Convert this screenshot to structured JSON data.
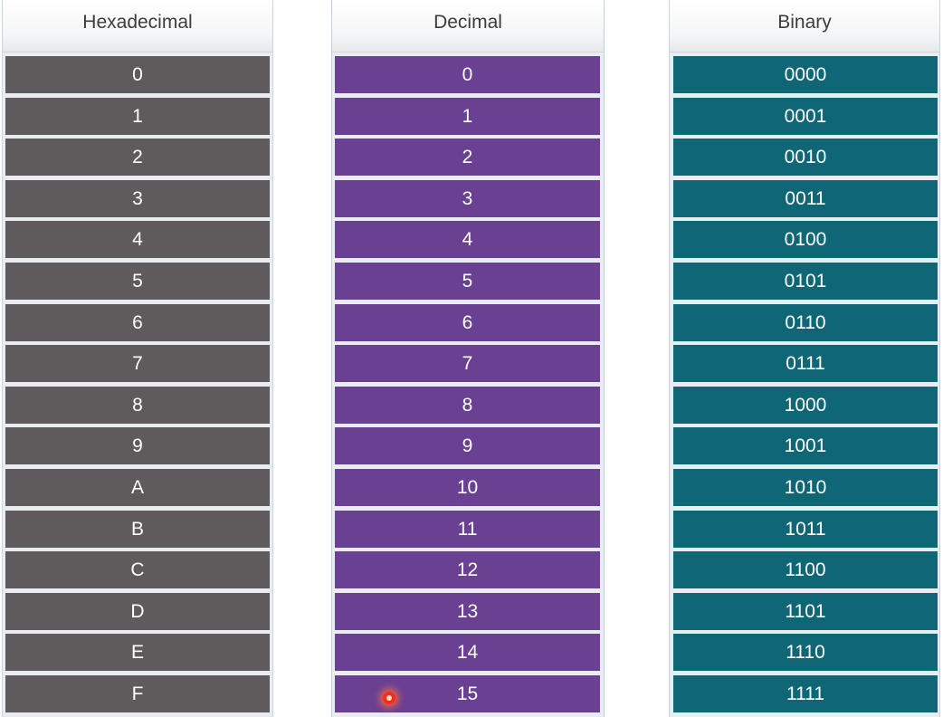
{
  "columns": {
    "hex": {
      "header": "Hexadecimal",
      "rows": [
        "0",
        "1",
        "2",
        "3",
        "4",
        "5",
        "6",
        "7",
        "8",
        "9",
        "A",
        "B",
        "C",
        "D",
        "E",
        "F"
      ],
      "color": "#5f5a5b"
    },
    "dec": {
      "header": "Decimal",
      "rows": [
        "0",
        "1",
        "2",
        "3",
        "4",
        "5",
        "6",
        "7",
        "8",
        "9",
        "10",
        "11",
        "12",
        "13",
        "14",
        "15"
      ],
      "color": "#6a4093"
    },
    "bin": {
      "header": "Binary",
      "rows": [
        "0000",
        "0001",
        "0010",
        "0011",
        "0100",
        "0101",
        "0110",
        "0111",
        "1000",
        "1001",
        "1010",
        "1011",
        "1100",
        "1101",
        "1110",
        "1111"
      ],
      "color": "#0f6776"
    }
  },
  "cursor": {
    "icon": "pointer-highlight-icon",
    "color": "#ff2a1a"
  }
}
